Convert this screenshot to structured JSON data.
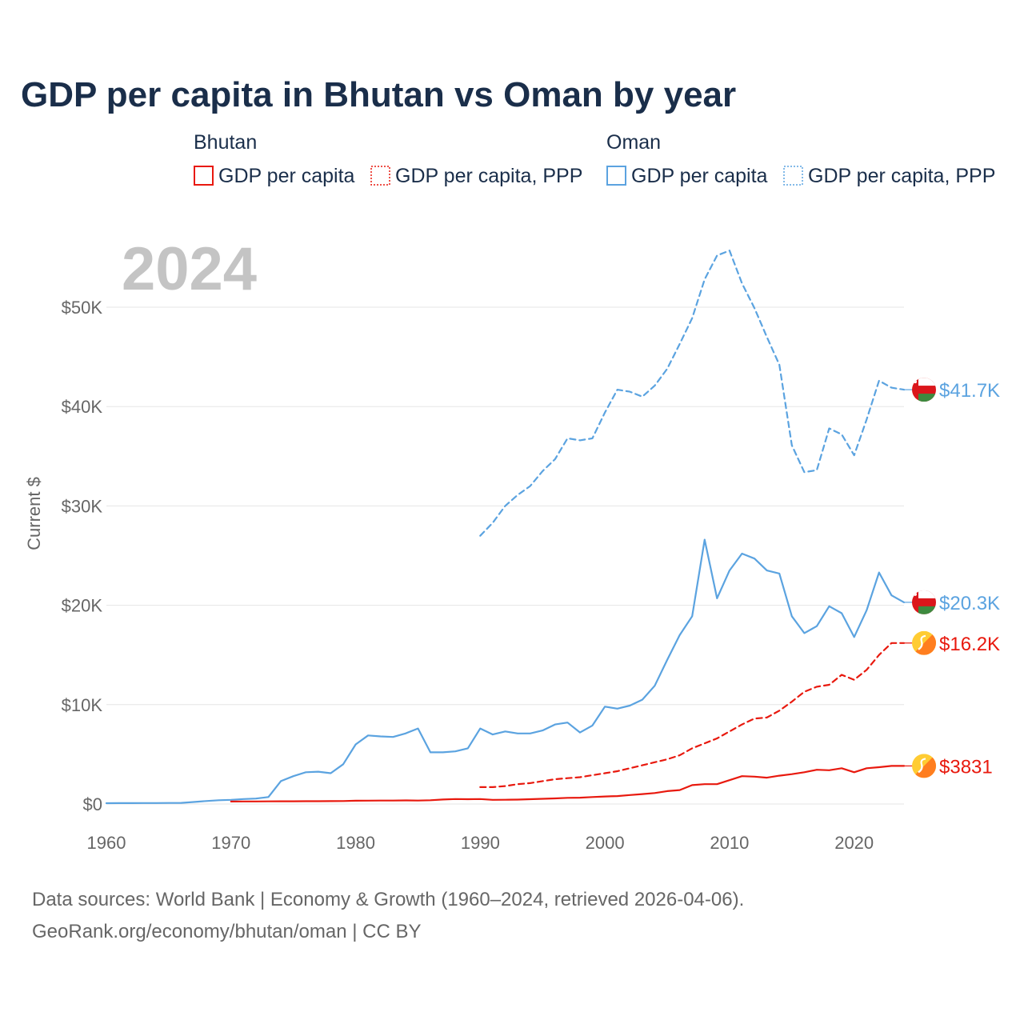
{
  "chart_data": {
    "type": "line",
    "title": "GDP per capita in Bhutan vs Oman by year",
    "year_label": "2024",
    "ylabel": "Current $",
    "xlim": [
      1960,
      2024
    ],
    "ylim": [
      0,
      56000
    ],
    "yticks": [
      {
        "value": 0,
        "label": "$0"
      },
      {
        "value": 10000,
        "label": "$10K"
      },
      {
        "value": 20000,
        "label": "$20K"
      },
      {
        "value": 30000,
        "label": "$30K"
      },
      {
        "value": 40000,
        "label": "$40K"
      },
      {
        "value": 50000,
        "label": "$50K"
      }
    ],
    "xticks": [
      {
        "value": 1960,
        "label": "1960"
      },
      {
        "value": 1970,
        "label": "1970"
      },
      {
        "value": 1980,
        "label": "1980"
      },
      {
        "value": 1990,
        "label": "1990"
      },
      {
        "value": 2000,
        "label": "2000"
      },
      {
        "value": 2010,
        "label": "2010"
      },
      {
        "value": 2020,
        "label": "2020"
      }
    ],
    "legend": [
      {
        "group": "Bhutan",
        "items": [
          {
            "label": "GDP per capita",
            "color": "#e8190e",
            "dash": "solid"
          },
          {
            "label": "GDP per capita, PPP",
            "color": "#e8190e",
            "dash": "dotted"
          }
        ]
      },
      {
        "group": "Oman",
        "items": [
          {
            "label": "GDP per capita",
            "color": "#5ba3e0",
            "dash": "solid"
          },
          {
            "label": "GDP per capita, PPP",
            "color": "#5ba3e0",
            "dash": "dotted"
          }
        ]
      }
    ],
    "series": [
      {
        "name": "Oman GDP per capita, PPP",
        "country": "oman",
        "color": "#5ba3e0",
        "dash": "dashed",
        "end_label": "$41.7K",
        "x": [
          1990,
          1991,
          1992,
          1993,
          1994,
          1995,
          1996,
          1997,
          1998,
          1999,
          2000,
          2001,
          2002,
          2003,
          2004,
          2005,
          2006,
          2007,
          2008,
          2009,
          2010,
          2011,
          2012,
          2013,
          2014,
          2015,
          2016,
          2017,
          2018,
          2019,
          2020,
          2021,
          2022,
          2023,
          2024
        ],
        "values": [
          27000,
          28300,
          30000,
          31100,
          32000,
          33500,
          34700,
          36800,
          36600,
          36800,
          39400,
          41700,
          41500,
          41000,
          42100,
          43800,
          46300,
          48900,
          52800,
          55200,
          55700,
          52400,
          49900,
          47000,
          44200,
          36100,
          33400,
          33600,
          37800,
          37200,
          35100,
          38700,
          42600,
          41900,
          41700
        ]
      },
      {
        "name": "Oman GDP per capita",
        "country": "oman",
        "color": "#5ba3e0",
        "dash": "solid",
        "end_label": "$20.3K",
        "x": [
          1960,
          1961,
          1962,
          1963,
          1964,
          1965,
          1966,
          1967,
          1968,
          1969,
          1970,
          1971,
          1972,
          1973,
          1974,
          1975,
          1976,
          1977,
          1978,
          1979,
          1980,
          1981,
          1982,
          1983,
          1984,
          1985,
          1986,
          1987,
          1988,
          1989,
          1990,
          1991,
          1992,
          1993,
          1994,
          1995,
          1996,
          1997,
          1998,
          1999,
          2000,
          2001,
          2002,
          2003,
          2004,
          2005,
          2006,
          2007,
          2008,
          2009,
          2010,
          2011,
          2012,
          2013,
          2014,
          2015,
          2016,
          2017,
          2018,
          2019,
          2020,
          2021,
          2022,
          2023,
          2024
        ],
        "values": [
          80,
          85,
          90,
          95,
          100,
          105,
          110,
          200,
          300,
          380,
          420,
          500,
          550,
          700,
          2300,
          2800,
          3200,
          3250,
          3100,
          4000,
          6000,
          6900,
          6800,
          6750,
          7100,
          7600,
          5200,
          5200,
          5300,
          5600,
          7600,
          7000,
          7300,
          7100,
          7100,
          7400,
          8000,
          8200,
          7200,
          7900,
          9800,
          9600,
          9900,
          10500,
          11900,
          14500,
          17000,
          18900,
          26600,
          20700,
          23500,
          25200,
          24700,
          23500,
          23200,
          18900,
          17200,
          17900,
          19900,
          19200,
          16800,
          19500,
          23300,
          21000,
          20300
        ]
      },
      {
        "name": "Bhutan GDP per capita, PPP",
        "country": "bhutan",
        "color": "#e8190e",
        "dash": "dashed",
        "end_label": "$16.2K",
        "x": [
          1990,
          1991,
          1992,
          1993,
          1994,
          1995,
          1996,
          1997,
          1998,
          1999,
          2000,
          2001,
          2002,
          2003,
          2004,
          2005,
          2006,
          2007,
          2008,
          2009,
          2010,
          2011,
          2012,
          2013,
          2014,
          2015,
          2016,
          2017,
          2018,
          2019,
          2020,
          2021,
          2022,
          2023,
          2024
        ],
        "values": [
          1700,
          1700,
          1800,
          2000,
          2100,
          2300,
          2500,
          2600,
          2700,
          2900,
          3100,
          3300,
          3600,
          3900,
          4200,
          4500,
          4900,
          5600,
          6100,
          6600,
          7300,
          8000,
          8600,
          8700,
          9400,
          10300,
          11300,
          11800,
          12000,
          13000,
          12500,
          13500,
          15000,
          16200,
          16200
        ]
      },
      {
        "name": "Bhutan GDP per capita",
        "country": "bhutan",
        "color": "#e8190e",
        "dash": "solid",
        "end_label": "$3831",
        "x": [
          1970,
          1971,
          1972,
          1973,
          1974,
          1975,
          1976,
          1977,
          1978,
          1979,
          1980,
          1981,
          1982,
          1983,
          1984,
          1985,
          1986,
          1987,
          1988,
          1989,
          1990,
          1991,
          1992,
          1993,
          1994,
          1995,
          1996,
          1997,
          1998,
          1999,
          2000,
          2001,
          2002,
          2003,
          2004,
          2005,
          2006,
          2007,
          2008,
          2009,
          2010,
          2011,
          2012,
          2013,
          2014,
          2015,
          2016,
          2017,
          2018,
          2019,
          2020,
          2021,
          2022,
          2023,
          2024
        ],
        "values": [
          250,
          255,
          260,
          265,
          270,
          275,
          280,
          285,
          290,
          300,
          330,
          340,
          345,
          350,
          360,
          350,
          380,
          450,
          500,
          480,
          500,
          420,
          430,
          440,
          480,
          520,
          560,
          620,
          640,
          700,
          760,
          800,
          900,
          1000,
          1100,
          1300,
          1400,
          1900,
          2000,
          2000,
          2400,
          2800,
          2750,
          2650,
          2850,
          3000,
          3200,
          3450,
          3400,
          3600,
          3200,
          3600,
          3700,
          3831,
          3831
        ]
      }
    ]
  },
  "source": {
    "line1": "Data sources: World Bank | Economy & Growth (1960–2024, retrieved 2026-04-06).",
    "line2": "GeoRank.org/economy/bhutan/oman | CC BY"
  }
}
